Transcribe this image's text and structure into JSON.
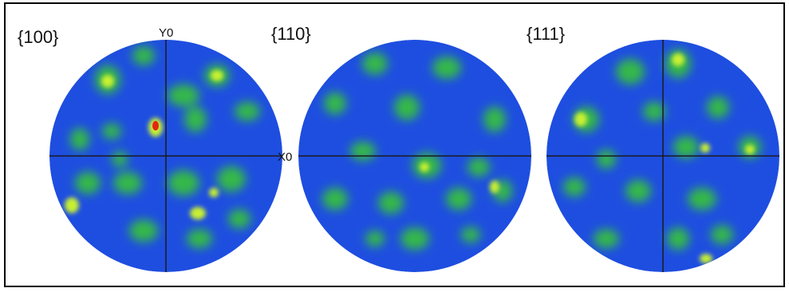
{
  "figure": {
    "pole_figures": [
      {
        "label": "{100}"
      },
      {
        "label": "{110}"
      },
      {
        "label": "{111}"
      }
    ],
    "axis_labels": {
      "y": "Y0",
      "x": "X0"
    },
    "colors": {
      "background": "#1f3fd6",
      "low": "#1e55e0",
      "mid": "#2fb64a",
      "high": "#c8f030",
      "peak": "#e52612",
      "axis": "#1a1a1a"
    }
  }
}
